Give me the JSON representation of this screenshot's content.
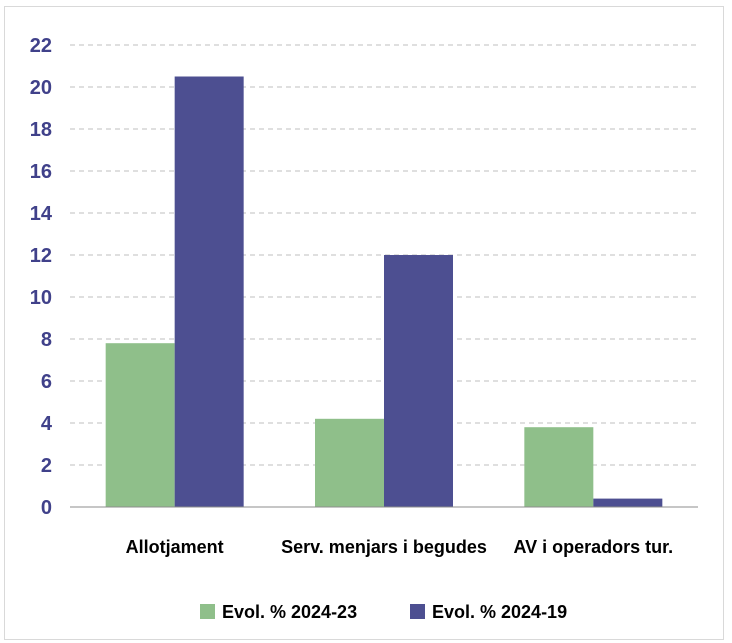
{
  "chart_data": {
    "type": "bar",
    "categories": [
      "Allotjament",
      "Serv. menjars i begudes",
      "AV i operadors tur."
    ],
    "series": [
      {
        "name": "Evol. % 2024-23",
        "values": [
          7.8,
          4.2,
          3.8
        ],
        "color": "#8fbf8a"
      },
      {
        "name": "Evol. % 2024-19",
        "values": [
          20.5,
          12.0,
          0.4
        ],
        "color": "#4d4f91"
      }
    ],
    "yticks": [
      "0",
      "2",
      "4",
      "6",
      "8",
      "10",
      "12",
      "14",
      "16",
      "18",
      "20",
      "22"
    ],
    "ylim": [
      0,
      22
    ],
    "grid": true,
    "legend": "bottom",
    "title": "",
    "xlabel": "",
    "ylabel": "",
    "tick_color": "#40418a",
    "grid_color": "#bfbfbf"
  }
}
